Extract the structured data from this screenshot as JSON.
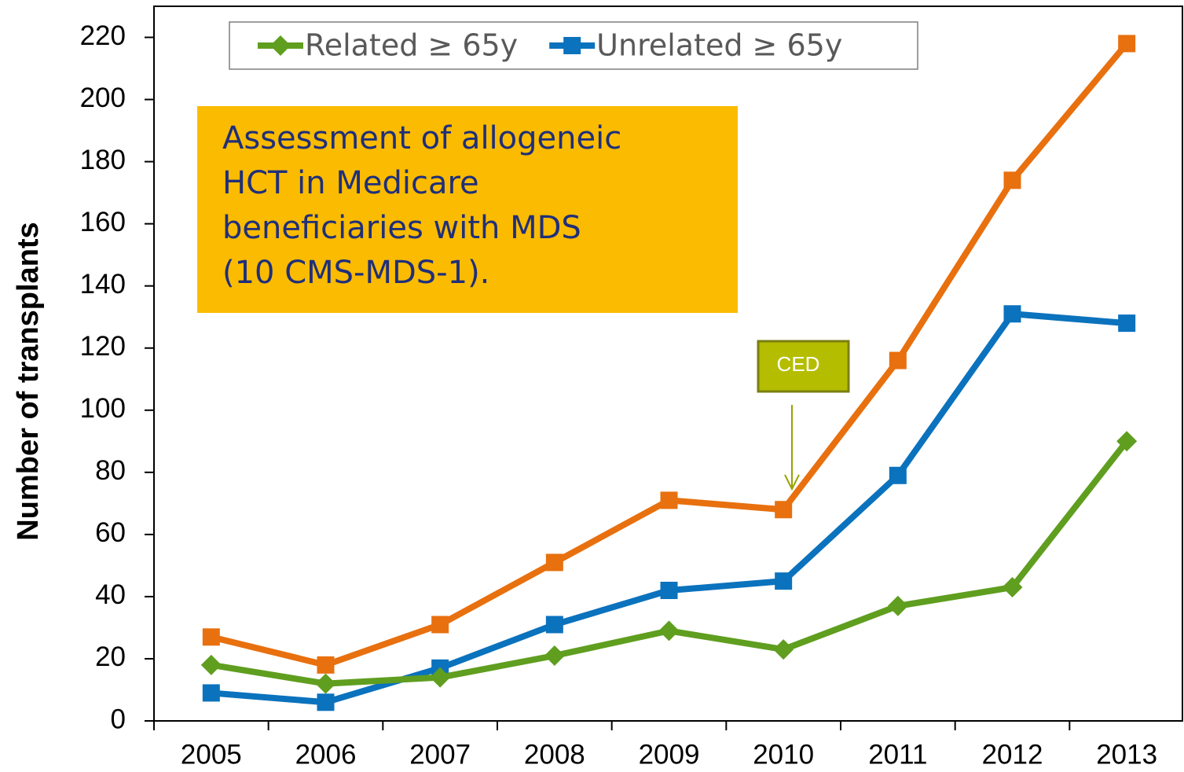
{
  "chart_data": {
    "type": "line",
    "y_label": "Number of transplants",
    "categories": [
      "2005",
      "2006",
      "2007",
      "2008",
      "2009",
      "2010",
      "2011",
      "2012",
      "2013"
    ],
    "series": [
      {
        "name": "Related ≥ 65y",
        "color": "#5f9e1f",
        "marker": "diamond",
        "values": [
          18,
          12,
          14,
          21,
          29,
          23,
          37,
          43,
          90
        ]
      },
      {
        "name": "Unrelated ≥ 65y",
        "color": "#0b72bd",
        "marker": "square",
        "values": [
          9,
          6,
          17,
          31,
          42,
          45,
          79,
          131,
          128
        ]
      },
      {
        "color": "#e8700e",
        "marker": "square",
        "values": [
          27,
          18,
          31,
          51,
          71,
          68,
          116,
          174,
          218
        ]
      }
    ],
    "ylim": [
      0,
      230
    ],
    "yticks": [
      0,
      20,
      40,
      60,
      80,
      100,
      120,
      140,
      160,
      180,
      200,
      220
    ],
    "annotations": [
      {
        "lines": [
          "Assessment of allogeneic",
          "HCT in Medicare",
          "beneficiaries with MDS",
          "(10 CMS-MDS-1)."
        ]
      },
      {
        "text": "CED"
      }
    ]
  }
}
